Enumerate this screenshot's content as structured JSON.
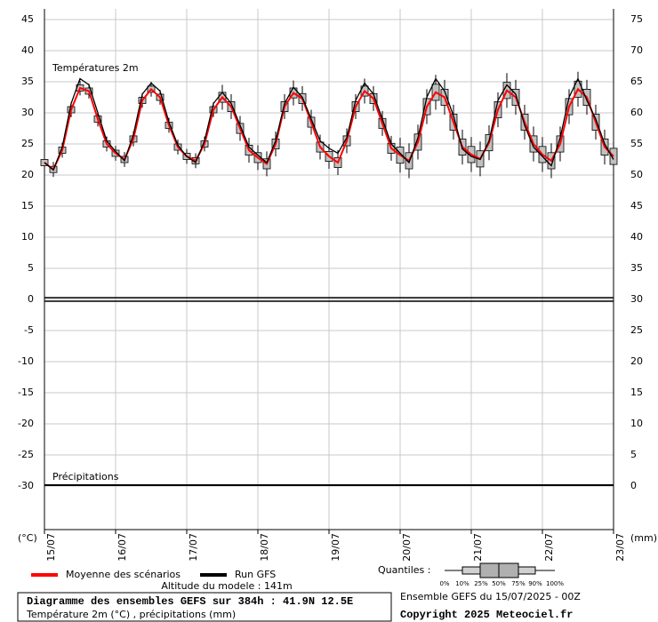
{
  "chart_data": {
    "type": "box",
    "title": "Diagramme des ensembles GEFS sur 384h : 41.9N 12.5E",
    "subtitle": "Température 2m (°C) , précipitations (mm)",
    "temp_label": "Températures 2m",
    "precip_label": "Précipitations",
    "ylabel": "(°C)",
    "y2label": "(mm)",
    "x": [
      0,
      3,
      6,
      9,
      12,
      15,
      18,
      21,
      24,
      27,
      30,
      33,
      36,
      39,
      42,
      45,
      48,
      51,
      54,
      57,
      60,
      63,
      66,
      69,
      72,
      75,
      78,
      81,
      84,
      87,
      90,
      93,
      96,
      99,
      102,
      105,
      108,
      111,
      114,
      117,
      120,
      123,
      126,
      129,
      132,
      135,
      138,
      141,
      144,
      147,
      150,
      153,
      156,
      159,
      162,
      165,
      168,
      171,
      174,
      177,
      180,
      183,
      186,
      189,
      192
    ],
    "xlim": [
      0,
      192
    ],
    "xticks": [
      {
        "value": 0,
        "label": "15/07"
      },
      {
        "value": 24,
        "label": "16/07"
      },
      {
        "value": 48,
        "label": "17/07"
      },
      {
        "value": 72,
        "label": "18/07"
      },
      {
        "value": 96,
        "label": "19/07"
      },
      {
        "value": 120,
        "label": "20/07"
      },
      {
        "value": 144,
        "label": "21/07"
      },
      {
        "value": 168,
        "label": "22/07"
      },
      {
        "value": 192,
        "label": "23/07"
      }
    ],
    "ylim": [
      -37,
      46
    ],
    "yticks": [
      45,
      40,
      35,
      30,
      25,
      20,
      15,
      10,
      5,
      0,
      -5,
      -10,
      -15,
      -20,
      -25,
      -30
    ],
    "y2lim": [
      -7,
      76
    ],
    "y2ticks": [
      75,
      70,
      65,
      60,
      55,
      50,
      45,
      40,
      35,
      30,
      25,
      20,
      15,
      10,
      5,
      0
    ],
    "grid": true,
    "series": [
      {
        "name": "Moyenne des scénarios",
        "color": "#ff0000",
        "values": [
          22,
          20.9,
          24,
          30.5,
          34,
          33.5,
          29,
          25,
          23.5,
          22.5,
          25.8,
          32,
          33.8,
          32.5,
          28,
          24.5,
          23,
          22.3,
          25,
          30.5,
          32.5,
          31,
          27.5,
          24,
          22.8,
          21.8,
          25,
          31,
          33.2,
          32.3,
          28.5,
          24.5,
          23,
          22,
          25.5,
          31,
          33.5,
          32.3,
          28.3,
          24.3,
          23.2,
          22.3,
          25.3,
          31,
          33.3,
          32.5,
          28.5,
          24.5,
          23.3,
          22.6,
          25.2,
          30.5,
          33.6,
          32.5,
          28.5,
          25,
          23.3,
          22.3,
          25,
          31,
          33.8,
          32.5,
          28.5,
          24.5,
          23
        ]
      },
      {
        "name": "Run GFS",
        "color": "#000000",
        "values": [
          22,
          20.8,
          24.5,
          31.5,
          35.5,
          34.5,
          30,
          25.5,
          23.8,
          22.3,
          26.5,
          33,
          34.8,
          33.5,
          28.5,
          24.8,
          23,
          22,
          25.5,
          31.5,
          33.3,
          31.5,
          28,
          24.5,
          23.2,
          22,
          25.5,
          31.5,
          34.1,
          32.5,
          29,
          25.5,
          24.3,
          23.5,
          26,
          32,
          34.8,
          33,
          29,
          25,
          23.5,
          22,
          26,
          32.5,
          35.5,
          33.5,
          29.5,
          24.2,
          23,
          22.5,
          25.5,
          32,
          34.5,
          33,
          28,
          24.5,
          23,
          21.5,
          26,
          32.5,
          35.5,
          32,
          29,
          25,
          22.5
        ]
      }
    ],
    "boxes": {
      "color": "#c0c0c0",
      "q25": [
        21.5,
        20.4,
        23.5,
        30,
        33.5,
        33,
        28.5,
        24.5,
        23,
        22,
        25.3,
        31.5,
        33.3,
        32,
        27.5,
        24,
        22.5,
        21.8,
        24.5,
        30,
        31.7,
        30.2,
        26.7,
        23.2,
        22,
        21,
        24.2,
        30.2,
        32.4,
        31.5,
        27.7,
        23.7,
        22.2,
        21.2,
        24.7,
        30.2,
        32.7,
        31.5,
        27.5,
        23.5,
        21.9,
        21,
        24,
        29.7,
        32,
        31.2,
        27.2,
        23.2,
        22,
        21.3,
        23.9,
        29.2,
        32.3,
        31.2,
        27.2,
        23.7,
        22,
        21,
        23.7,
        29.7,
        32.5,
        31.2,
        27.2,
        23.2,
        21.7
      ],
      "q75": [
        22.5,
        21.4,
        24.5,
        31,
        34.5,
        34,
        29.5,
        25.5,
        24,
        23,
        26.3,
        32.5,
        34.3,
        33,
        28.5,
        25,
        23.5,
        22.8,
        25.5,
        31,
        33.3,
        31.8,
        28.3,
        24.8,
        23.6,
        22.6,
        25.8,
        31.8,
        34,
        33.1,
        29.3,
        25.3,
        23.8,
        22.8,
        26.3,
        31.8,
        34.3,
        33.1,
        29.1,
        25.1,
        24.5,
        23.6,
        26.6,
        32.3,
        34.6,
        33.8,
        29.8,
        25.8,
        24.6,
        23.9,
        26.5,
        31.8,
        34.9,
        33.8,
        29.8,
        26.3,
        24.6,
        23.6,
        26.3,
        32.3,
        35.1,
        33.8,
        29.8,
        25.8,
        24.3
      ],
      "min": [
        20.8,
        19.7,
        22.8,
        29.3,
        32.8,
        32.3,
        27.8,
        23.8,
        22.3,
        21.3,
        24.6,
        30.8,
        32.6,
        31.3,
        26.8,
        23.3,
        21.8,
        21.1,
        23.8,
        29.3,
        30.5,
        29,
        25.5,
        22,
        20.8,
        19.8,
        23,
        29,
        31.2,
        30.3,
        26.5,
        22.5,
        21,
        20,
        23.5,
        29,
        31.5,
        30.3,
        26.3,
        22.3,
        20.4,
        19.5,
        22.5,
        28.2,
        30.5,
        29.7,
        25.7,
        21.7,
        20.5,
        19.8,
        22.4,
        27.7,
        30.8,
        29.7,
        25.7,
        22.2,
        20.5,
        19.5,
        22.2,
        28.2,
        31,
        29.7,
        25.7,
        21.7,
        20.2
      ],
      "max": [
        23.2,
        22.1,
        25.2,
        31.7,
        35.2,
        34.7,
        30.2,
        26.2,
        24.7,
        23.7,
        27,
        33.2,
        35,
        33.7,
        29.2,
        25.7,
        24.2,
        23.5,
        26.2,
        31.7,
        34.5,
        33,
        29.5,
        26,
        24.8,
        23.8,
        27,
        33,
        35.2,
        34.3,
        30.5,
        26.5,
        25,
        24,
        27.5,
        33,
        35.5,
        34.3,
        30.3,
        26.3,
        26,
        25.1,
        28.1,
        33.8,
        36.1,
        35.3,
        31.3,
        27.3,
        26.1,
        25.4,
        28,
        33.3,
        36.4,
        35.3,
        31.3,
        27.8,
        26.1,
        25.1,
        27.8,
        33.8,
        36.6,
        35.3,
        31.3,
        27.3,
        25.8
      ]
    },
    "quantiles_label": "Quantiles :",
    "quantiles": [
      "0%",
      "10%",
      "25%",
      "50%",
      "75%",
      "90%",
      "100%"
    ],
    "altitude": "Altitude du modele : 141m",
    "run_info": "Ensemble GEFS du 15/07/2025 - 00Z",
    "copyright": "Copyright 2025 Meteociel.fr"
  }
}
